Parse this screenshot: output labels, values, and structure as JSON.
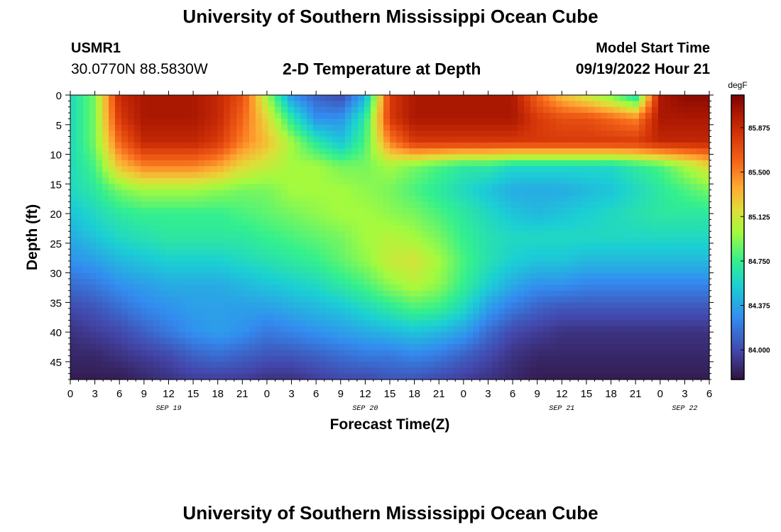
{
  "header": {
    "title": "University of Southern Mississippi Ocean Cube",
    "station_id": "USMR1",
    "station_coords": "30.0770N  88.5830W",
    "model_label": "Model Start Time",
    "model_time": "09/19/2022 Hour 21"
  },
  "footer": {
    "title": "University of Southern Mississippi Ocean Cube"
  },
  "chart_data": {
    "type": "heatmap",
    "title": "2-D Temperature at Depth",
    "xlabel": "Forecast Time(Z)",
    "ylabel": "Depth (ft)",
    "xlim": [
      0,
      78
    ],
    "ylim": [
      0,
      48
    ],
    "y_inverted": true,
    "x_ticks": [
      0,
      3,
      6,
      9,
      12,
      15,
      18,
      21,
      24,
      27,
      30,
      33,
      36,
      39,
      42,
      45,
      48,
      51,
      54,
      57,
      60,
      63,
      66,
      69,
      72,
      75,
      78
    ],
    "x_tick_labels": [
      "0",
      "3",
      "6",
      "9",
      "12",
      "15",
      "18",
      "21",
      "0",
      "3",
      "6",
      "9",
      "12",
      "15",
      "18",
      "21",
      "0",
      "3",
      "6",
      "9",
      "12",
      "15",
      "18",
      "21",
      "0",
      "3",
      "6"
    ],
    "y_ticks": [
      0,
      5,
      10,
      15,
      20,
      25,
      30,
      35,
      40,
      45
    ],
    "y_tick_labels": [
      "0",
      "5",
      "10",
      "15",
      "20",
      "25",
      "30",
      "35",
      "40",
      "45"
    ],
    "date_labels": [
      {
        "x": 12,
        "label": "SEP 19"
      },
      {
        "x": 36,
        "label": "SEP 20"
      },
      {
        "x": 60,
        "label": "SEP 21"
      },
      {
        "x": 75,
        "label": "SEP 22"
      }
    ],
    "colorbar": {
      "unit": "degF",
      "min": 83.75,
      "max": 86.15,
      "ticks": [
        84.0,
        84.375,
        84.75,
        85.125,
        85.5,
        85.875
      ],
      "tick_labels": [
        "84.000",
        "84.375",
        "84.750",
        "85.125",
        "85.500",
        "85.875"
      ]
    },
    "depths": [
      0,
      4,
      8,
      12,
      16,
      20,
      24,
      28,
      32,
      36,
      40,
      44,
      48
    ],
    "times": [
      0,
      3,
      6,
      9,
      12,
      15,
      18,
      21,
      24,
      27,
      30,
      33,
      36,
      39,
      42,
      45,
      48,
      51,
      54,
      57,
      60,
      63,
      66,
      69,
      72,
      75,
      78
    ],
    "temperature": [
      [
        84.6,
        84.9,
        85.9,
        86.0,
        86.0,
        86.0,
        85.9,
        85.7,
        85.0,
        84.3,
        84.1,
        84.0,
        84.4,
        85.8,
        86.0,
        86.0,
        86.0,
        86.0,
        86.0,
        85.6,
        85.3,
        85.1,
        84.9,
        84.6,
        86.0,
        86.1,
        86.1
      ],
      [
        84.6,
        84.9,
        85.8,
        86.0,
        86.0,
        86.0,
        85.9,
        85.6,
        85.2,
        84.7,
        84.3,
        84.3,
        84.7,
        85.8,
        86.0,
        86.0,
        86.0,
        86.0,
        86.0,
        85.8,
        85.7,
        85.7,
        85.6,
        85.5,
        86.0,
        86.0,
        86.0
      ],
      [
        84.6,
        84.9,
        85.6,
        85.9,
        85.9,
        85.9,
        85.8,
        85.5,
        85.3,
        85.0,
        84.7,
        84.5,
        84.8,
        85.5,
        85.8,
        85.8,
        85.8,
        85.8,
        85.8,
        85.8,
        85.8,
        85.8,
        85.8,
        85.8,
        85.9,
        85.9,
        85.9
      ],
      [
        84.6,
        84.8,
        85.3,
        85.5,
        85.5,
        85.5,
        85.4,
        85.2,
        85.1,
        85.0,
        85.0,
        84.9,
        84.9,
        85.0,
        84.9,
        84.8,
        84.7,
        84.7,
        84.6,
        84.6,
        84.6,
        84.6,
        84.6,
        84.7,
        84.8,
        85.0,
        85.2
      ],
      [
        84.6,
        84.7,
        84.9,
        85.0,
        85.0,
        85.0,
        84.95,
        84.9,
        84.9,
        85.0,
        85.0,
        85.0,
        84.95,
        84.9,
        84.8,
        84.7,
        84.6,
        84.5,
        84.4,
        84.4,
        84.4,
        84.45,
        84.5,
        84.6,
        84.7,
        84.8,
        84.9
      ],
      [
        84.5,
        84.6,
        84.7,
        84.75,
        84.75,
        84.75,
        84.75,
        84.8,
        84.85,
        84.9,
        84.95,
        85.0,
        85.0,
        84.95,
        84.9,
        84.8,
        84.7,
        84.6,
        84.5,
        84.45,
        84.5,
        84.55,
        84.6,
        84.65,
        84.7,
        84.7,
        84.7
      ],
      [
        84.4,
        84.5,
        84.6,
        84.65,
        84.7,
        84.7,
        84.7,
        84.7,
        84.75,
        84.8,
        84.85,
        84.9,
        85.0,
        85.05,
        85.0,
        84.9,
        84.75,
        84.65,
        84.6,
        84.6,
        84.6,
        84.6,
        84.6,
        84.6,
        84.6,
        84.6,
        84.6
      ],
      [
        84.3,
        84.35,
        84.45,
        84.5,
        84.55,
        84.55,
        84.55,
        84.6,
        84.65,
        84.7,
        84.75,
        84.85,
        84.95,
        85.1,
        85.15,
        85.0,
        84.8,
        84.65,
        84.55,
        84.5,
        84.5,
        84.45,
        84.45,
        84.45,
        84.45,
        84.45,
        84.45
      ],
      [
        84.15,
        84.2,
        84.3,
        84.35,
        84.4,
        84.4,
        84.4,
        84.45,
        84.5,
        84.55,
        84.6,
        84.7,
        84.8,
        84.95,
        85.05,
        84.95,
        84.75,
        84.55,
        84.4,
        84.3,
        84.3,
        84.25,
        84.25,
        84.25,
        84.25,
        84.25,
        84.25
      ],
      [
        84.0,
        84.05,
        84.15,
        84.25,
        84.3,
        84.35,
        84.35,
        84.35,
        84.35,
        84.4,
        84.45,
        84.5,
        84.6,
        84.7,
        84.8,
        84.75,
        84.6,
        84.35,
        84.2,
        84.1,
        84.05,
        84.05,
        84.05,
        84.05,
        84.05,
        84.05,
        84.05
      ],
      [
        83.9,
        83.95,
        84.0,
        84.1,
        84.2,
        84.3,
        84.35,
        84.3,
        84.2,
        84.25,
        84.3,
        84.35,
        84.4,
        84.45,
        84.5,
        84.45,
        84.35,
        84.15,
        84.0,
        83.95,
        83.9,
        83.9,
        83.9,
        83.9,
        83.9,
        83.9,
        83.9
      ],
      [
        83.85,
        83.85,
        83.9,
        83.95,
        84.0,
        84.1,
        84.15,
        84.1,
        84.05,
        84.05,
        84.1,
        84.15,
        84.2,
        84.2,
        84.25,
        84.2,
        84.1,
        84.0,
        83.9,
        83.85,
        83.85,
        83.85,
        83.85,
        83.85,
        83.85,
        83.85,
        83.85
      ],
      [
        83.8,
        83.8,
        83.8,
        83.85,
        83.9,
        83.95,
        83.95,
        83.95,
        83.9,
        83.9,
        83.95,
        84.0,
        84.0,
        84.05,
        84.05,
        84.0,
        83.95,
        83.9,
        83.85,
        83.8,
        83.8,
        83.8,
        83.8,
        83.8,
        83.8,
        83.8,
        83.8
      ]
    ]
  }
}
